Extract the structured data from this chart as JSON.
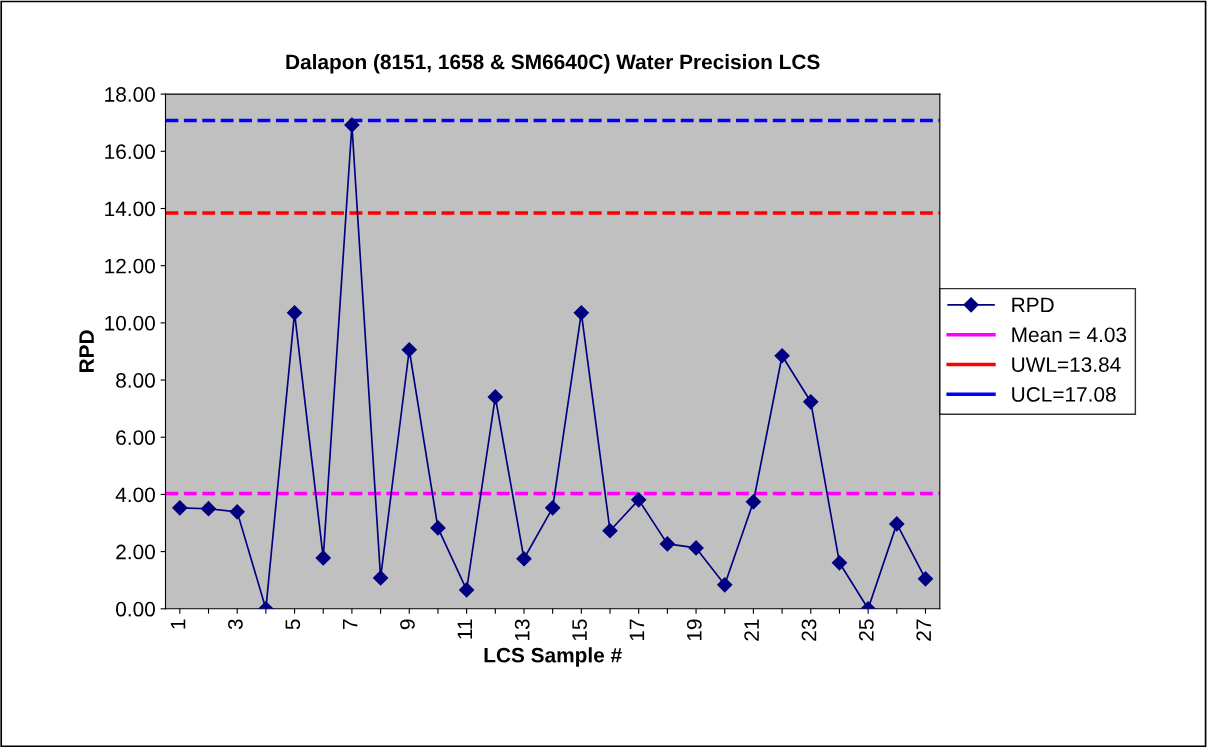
{
  "chart_data": {
    "type": "line",
    "title": "Dalapon (8151, 1658 & SM6640C) Water Precision LCS",
    "xlabel": "LCS Sample #",
    "ylabel": "RPD",
    "categories": [
      "1",
      null,
      "3",
      null,
      "5",
      null,
      "7",
      null,
      "9",
      null,
      "11",
      null,
      "13",
      null,
      "15",
      null,
      "17",
      null,
      "19",
      null,
      "21",
      null,
      "23",
      null,
      "25",
      null,
      "27"
    ],
    "series": [
      {
        "name": "RPD",
        "color": "#000080",
        "values": [
          3.53,
          3.5,
          3.39,
          0,
          10.35,
          1.78,
          16.92,
          1.08,
          9.06,
          2.83,
          0.66,
          7.41,
          1.75,
          3.53,
          10.35,
          2.73,
          3.81,
          2.27,
          2.13,
          0.84,
          3.74,
          8.85,
          7.24,
          1.61,
          0,
          2.97,
          1.05
        ]
      }
    ],
    "ref_lines": [
      {
        "axis": "y",
        "value": 4.03,
        "label": "Mean = 4.03",
        "color": "#ff00ff",
        "line_style": "dashed"
      },
      {
        "axis": "y",
        "value": 13.84,
        "label": "UWL=13.84",
        "color": "#ff0000",
        "line_style": "dashed"
      },
      {
        "axis": "y",
        "value": 17.08,
        "label": "UCL=17.08",
        "color": "#0000ff",
        "line_style": "dashed"
      }
    ],
    "ylim": [
      0,
      18
    ],
    "yticks": [
      {
        "value": 0,
        "label": "0.00"
      },
      {
        "value": 2,
        "label": "2.00"
      },
      {
        "value": 4,
        "label": "4.00"
      },
      {
        "value": 6,
        "label": "6.00"
      },
      {
        "value": 8,
        "label": "8.00"
      },
      {
        "value": 10,
        "label": "10.00"
      },
      {
        "value": 12,
        "label": "12.00"
      },
      {
        "value": 14,
        "label": "14.00"
      },
      {
        "value": 16,
        "label": "16.00"
      },
      {
        "value": 18,
        "label": "18.00"
      }
    ],
    "marker": "diamond",
    "line_style": "solid",
    "grid": false,
    "legend": "right"
  }
}
